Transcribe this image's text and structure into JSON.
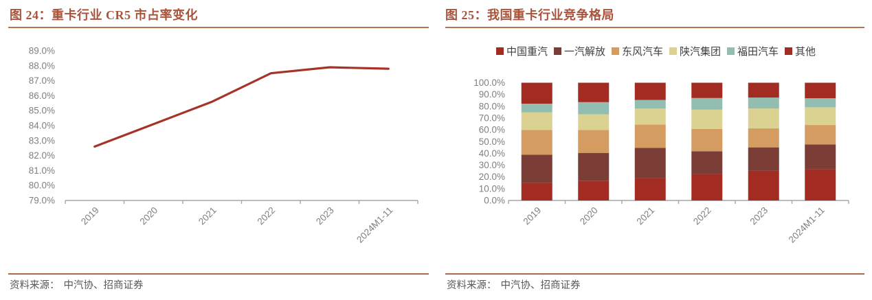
{
  "left_panel": {
    "title": "图 24：重卡行业 CR5 市占率变化",
    "source_label": "资料来源：",
    "source_text": "中汽协、招商证券"
  },
  "right_panel": {
    "title": "图 25：我国重卡行业竞争格局",
    "source_label": "资料来源：",
    "source_text": "中汽协、招商证券"
  },
  "colors": {
    "title_text": "#A8543C",
    "rule": "#B5714F",
    "axis_line": "#A6A6A6",
    "axis_text": "#7f7f7f",
    "line_series": "#A63327",
    "legend_text": "#3f3f3f",
    "source_text": "#595959"
  },
  "chart_data": [
    {
      "type": "line",
      "title": "重卡行业 CR5 市占率变化",
      "x": [
        "2019",
        "2020",
        "2021",
        "2022",
        "2023",
        "2024M1-11"
      ],
      "series": [
        {
          "name": "CR5市占率",
          "color": "#A63327",
          "values": [
            82.6,
            84.1,
            85.6,
            87.5,
            87.9,
            87.8
          ]
        }
      ],
      "ylim": [
        79,
        89
      ],
      "ytick_labels": [
        "89.0%",
        "88.0%",
        "87.0%",
        "86.0%",
        "85.0%",
        "84.0%",
        "83.0%",
        "82.0%",
        "81.0%",
        "80.0%",
        "79.0%"
      ],
      "grid": false,
      "legend_position": "none"
    },
    {
      "type": "bar",
      "stacked": true,
      "title": "我国重卡行业竞争格局",
      "categories": [
        "2019",
        "2020",
        "2021",
        "2022",
        "2023",
        "2024M1-11"
      ],
      "series": [
        {
          "name": "中国重汽",
          "color": "#A22C21",
          "values": [
            15.0,
            16.5,
            19.0,
            22.4,
            25.3,
            26.6
          ]
        },
        {
          "name": "一汽解放",
          "color": "#7A3E37",
          "values": [
            23.9,
            23.9,
            25.6,
            19.4,
            19.8,
            21.0
          ]
        },
        {
          "name": "东风汽车",
          "color": "#D49C61",
          "values": [
            21.0,
            19.4,
            19.8,
            19.0,
            16.1,
            16.5
          ]
        },
        {
          "name": "陕汽集团",
          "color": "#DBD191",
          "values": [
            15.0,
            13.4,
            13.6,
            16.3,
            16.9,
            15.0
          ]
        },
        {
          "name": "福田汽车",
          "color": "#92BEB1",
          "values": [
            7.3,
            10.3,
            7.4,
            9.9,
            9.3,
            7.7
          ]
        },
        {
          "name": "其他",
          "color": "#A22C21",
          "values": [
            17.8,
            16.5,
            14.6,
            13.0,
            12.6,
            13.2
          ]
        }
      ],
      "ylim": [
        0,
        100
      ],
      "ytick_labels": [
        "100.0%",
        "90.0%",
        "80.0%",
        "70.0%",
        "60.0%",
        "50.0%",
        "40.0%",
        "30.0%",
        "20.0%",
        "10.0%",
        "0.0%"
      ],
      "grid": false,
      "legend_position": "top"
    }
  ]
}
